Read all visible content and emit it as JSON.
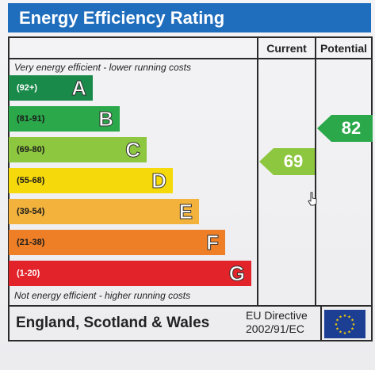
{
  "title": "Energy Efficiency Rating",
  "columns": {
    "current": "Current",
    "potential": "Potential"
  },
  "notes": {
    "top": "Very energy efficient - lower running costs",
    "bottom": "Not energy efficient - higher running costs"
  },
  "bands": [
    {
      "range": "(92+)",
      "letter": "A",
      "color": "#1a8a4a"
    },
    {
      "range": "(81-91)",
      "letter": "B",
      "color": "#2aa84a"
    },
    {
      "range": "(69-80)",
      "letter": "C",
      "color": "#8dc63f"
    },
    {
      "range": "(55-68)",
      "letter": "D",
      "color": "#f5d90a"
    },
    {
      "range": "(39-54)",
      "letter": "E",
      "color": "#f2b23c"
    },
    {
      "range": "(21-38)",
      "letter": "F",
      "color": "#ee7f27"
    },
    {
      "range": "(1-20)",
      "letter": "G",
      "color": "#e2232a"
    }
  ],
  "ratings": {
    "current": {
      "value": "69",
      "band": "C",
      "color": "#8dc63f"
    },
    "potential": {
      "value": "82",
      "band": "B",
      "color": "#2aa84a"
    }
  },
  "footer": {
    "region": "England, Scotland & Wales",
    "directive_line1": "EU Directive",
    "directive_line2": "2002/91/EC"
  },
  "colors": {
    "title_bar": "#1f6dbd",
    "eu_flag": "#1c3f94",
    "eu_stars": "#ffd400"
  }
}
